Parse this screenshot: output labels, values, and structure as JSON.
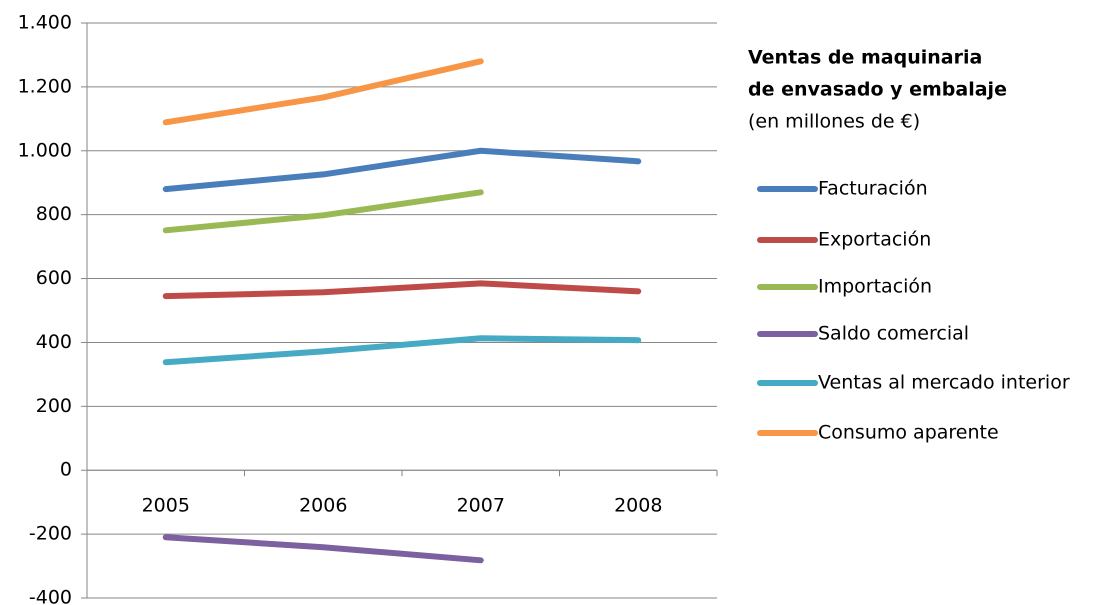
{
  "chart_data": {
    "type": "line",
    "title": [
      "Ventas de maquinaria",
      "de envasado y embalaje"
    ],
    "subtitle": "(en millones de €)",
    "categories": [
      "2005",
      "2006",
      "2007",
      "2008"
    ],
    "series": [
      {
        "name": "Facturación",
        "color": "#4a7ebb",
        "values": [
          880,
          926,
          1000,
          967
        ]
      },
      {
        "name": "Exportación",
        "color": "#be4b48",
        "values": [
          545,
          557,
          585,
          560
        ]
      },
      {
        "name": "Importación",
        "color": "#98b954",
        "values": [
          751,
          798,
          870,
          null
        ]
      },
      {
        "name": "Saldo comercial",
        "color": "#7d60a0",
        "values": [
          -210,
          -241,
          -282,
          null
        ]
      },
      {
        "name": "Ventas al mercado interior",
        "color": "#46aac5",
        "values": [
          338,
          372,
          413,
          407
        ]
      },
      {
        "name": "Consumo aparente",
        "color": "#f79646",
        "values": [
          1089,
          1167,
          1280,
          null
        ]
      }
    ],
    "ylim": [
      -400,
      1400
    ],
    "yticks": [
      -400,
      -200,
      0,
      200,
      400,
      600,
      800,
      {
        "value": 1000,
        "label": "1.000"
      },
      {
        "value": 1200,
        "label": "1.200"
      },
      {
        "value": 1400,
        "label": "1.400"
      }
    ],
    "grid": true,
    "legend": "right"
  }
}
